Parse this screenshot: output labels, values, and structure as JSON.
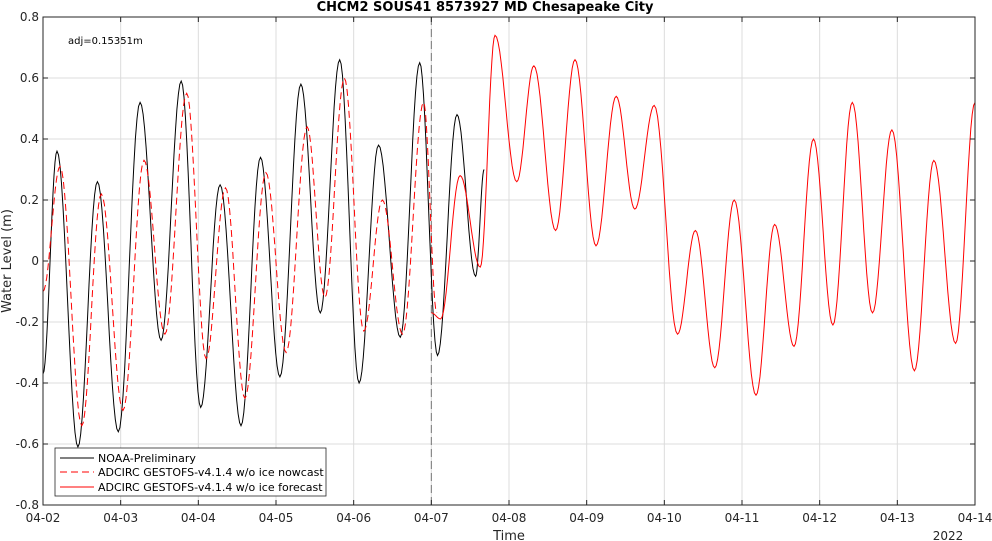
{
  "chart_data": {
    "type": "line",
    "title": "CHCM2 SOUS41 8573927 MD Chesapeake City",
    "xlabel": "Time",
    "ylabel": "Water Level (m)",
    "year_label": "2022",
    "annotation": "adj=0.15351m",
    "xlim": [
      "04-02",
      "04-14"
    ],
    "ylim": [
      -0.8,
      0.8
    ],
    "xticks": [
      "04-02",
      "04-03",
      "04-04",
      "04-05",
      "04-06",
      "04-07",
      "04-08",
      "04-09",
      "04-10",
      "04-11",
      "04-12",
      "04-13",
      "04-14"
    ],
    "yticks": [
      -0.8,
      -0.6,
      -0.4,
      -0.2,
      0,
      0.2,
      0.4,
      0.6,
      0.8
    ],
    "grid": true,
    "legend_location": "bottom-left",
    "nowcast_boundary": "04-07",
    "x_unit": "days since 04-02 00:00",
    "series": [
      {
        "name": "NOAA-Preliminary",
        "color": "#000000",
        "style": "solid",
        "extrema": [
          [
            0.0,
            -0.37
          ],
          [
            0.18,
            0.36
          ],
          [
            0.45,
            -0.61
          ],
          [
            0.7,
            0.26
          ],
          [
            0.97,
            -0.56
          ],
          [
            1.25,
            0.52
          ],
          [
            1.52,
            -0.26
          ],
          [
            1.78,
            0.59
          ],
          [
            2.03,
            -0.48
          ],
          [
            2.28,
            0.25
          ],
          [
            2.55,
            -0.54
          ],
          [
            2.8,
            0.34
          ],
          [
            3.05,
            -0.38
          ],
          [
            3.32,
            0.58
          ],
          [
            3.57,
            -0.17
          ],
          [
            3.82,
            0.66
          ],
          [
            4.07,
            -0.4
          ],
          [
            4.32,
            0.38
          ],
          [
            4.6,
            -0.25
          ],
          [
            4.85,
            0.65
          ],
          [
            5.08,
            -0.31
          ],
          [
            5.33,
            0.48
          ],
          [
            5.57,
            -0.05
          ],
          [
            5.68,
            0.3
          ]
        ]
      },
      {
        "name": "ADCIRC GESTOFS-v4.1.4 w/o ice nowcast",
        "color": "#ff0000",
        "style": "dashed",
        "extrema": [
          [
            0.0,
            -0.1
          ],
          [
            0.22,
            0.31
          ],
          [
            0.5,
            -0.54
          ],
          [
            0.75,
            0.22
          ],
          [
            1.03,
            -0.49
          ],
          [
            1.3,
            0.33
          ],
          [
            1.57,
            -0.24
          ],
          [
            1.85,
            0.55
          ],
          [
            2.1,
            -0.32
          ],
          [
            2.35,
            0.24
          ],
          [
            2.6,
            -0.45
          ],
          [
            2.87,
            0.29
          ],
          [
            3.13,
            -0.3
          ],
          [
            3.4,
            0.44
          ],
          [
            3.63,
            -0.12
          ],
          [
            3.88,
            0.6
          ],
          [
            4.13,
            -0.23
          ],
          [
            4.37,
            0.2
          ],
          [
            4.63,
            -0.24
          ],
          [
            4.9,
            0.52
          ],
          [
            5.07,
            -0.17
          ]
        ]
      },
      {
        "name": "ADCIRC GESTOFS-v4.1.4 w/o ice forecast",
        "color": "#ff0000",
        "style": "solid",
        "extrema": [
          [
            5.0,
            -0.17
          ],
          [
            5.12,
            -0.19
          ],
          [
            5.37,
            0.28
          ],
          [
            5.63,
            -0.02
          ],
          [
            5.82,
            0.74
          ],
          [
            6.1,
            0.26
          ],
          [
            6.32,
            0.64
          ],
          [
            6.6,
            0.1
          ],
          [
            6.85,
            0.66
          ],
          [
            7.12,
            0.05
          ],
          [
            7.38,
            0.54
          ],
          [
            7.62,
            0.17
          ],
          [
            7.87,
            0.51
          ],
          [
            8.17,
            -0.24
          ],
          [
            8.4,
            0.1
          ],
          [
            8.65,
            -0.35
          ],
          [
            8.9,
            0.2
          ],
          [
            9.18,
            -0.44
          ],
          [
            9.42,
            0.12
          ],
          [
            9.67,
            -0.28
          ],
          [
            9.92,
            0.4
          ],
          [
            10.17,
            -0.21
          ],
          [
            10.42,
            0.52
          ],
          [
            10.68,
            -0.17
          ],
          [
            10.93,
            0.43
          ],
          [
            11.22,
            -0.36
          ],
          [
            11.47,
            0.33
          ],
          [
            11.75,
            -0.27
          ],
          [
            12.0,
            0.52
          ]
        ]
      }
    ]
  }
}
